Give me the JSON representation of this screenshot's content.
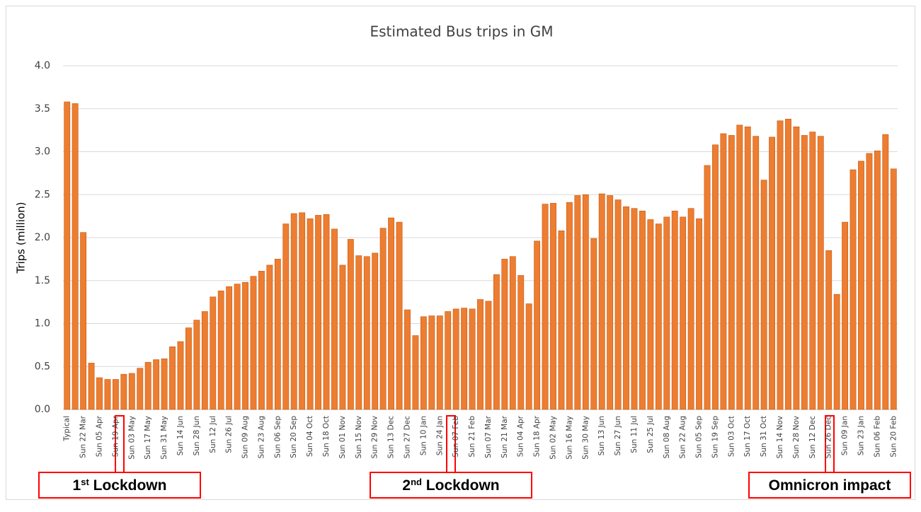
{
  "chart_data": {
    "type": "bar",
    "title": "Estimated Bus trips in GM",
    "y_label": "Trips (million)",
    "color": "#ed7d31",
    "categories": [
      "Typical",
      null,
      "Sun 22 Mar",
      null,
      "Sun 05 Apr",
      null,
      "Sun 19 Apr",
      null,
      "Sun 03 May",
      null,
      "Sun 17 May",
      null,
      "Sun 31 May",
      null,
      "Sun 14 Jun",
      null,
      "Sun 28 Jun",
      null,
      "Sun 12 Jul",
      null,
      "Sun 26 Jul",
      null,
      "Sun 09 Aug",
      null,
      "Sun 23 Aug",
      null,
      "Sun 06 Sep",
      null,
      "Sun 20 Sep",
      null,
      "Sun 04 Oct",
      null,
      "Sun 18 Oct",
      null,
      "Sun 01 Nov",
      null,
      "Sun 15 Nov",
      null,
      "Sun 29 Nov",
      null,
      "Sun 13 Dec",
      null,
      "Sun 27 Dec",
      null,
      "Sun 10 Jan",
      null,
      "Sun 24 Jan",
      null,
      "Sun 07 Feb",
      null,
      "Sun 21 Feb",
      null,
      "Sun 07 Mar",
      null,
      "Sun 21 Mar",
      null,
      "Sun 04 Apr",
      null,
      "Sun 18 Apr",
      null,
      "Sun 02 May",
      null,
      "Sun 16 May",
      null,
      "Sun 30 May",
      null,
      "Sun 13 Jun",
      null,
      "Sun 27 Jun",
      null,
      "Sun 11 Jul",
      null,
      "Sun 25 Jul",
      null,
      "Sun 08 Aug",
      null,
      "Sun 22 Aug",
      null,
      "Sun 05 Sep",
      null,
      "Sun 19 Sep",
      null,
      "Sun 03 Oct",
      null,
      "Sun 17 Oct",
      null,
      "Sun 31 Oct",
      null,
      "Sun 14 Nov",
      null,
      "Sun 28 Nov",
      null,
      "Sun 12 Dec",
      null,
      "Sun 26 Dec",
      null,
      "Sun 09 Jan",
      null,
      "Sun 23 Jan",
      null,
      "Sun 06 Feb",
      null,
      "Sun 20 Feb"
    ],
    "values": [
      3.58,
      3.56,
      2.06,
      0.54,
      0.37,
      0.35,
      0.35,
      0.41,
      0.42,
      0.48,
      0.55,
      0.58,
      0.59,
      0.73,
      0.79,
      0.95,
      1.04,
      1.14,
      1.31,
      1.38,
      1.43,
      1.46,
      1.48,
      1.55,
      1.61,
      1.68,
      1.75,
      2.16,
      2.28,
      2.29,
      2.22,
      2.26,
      2.27,
      2.1,
      1.68,
      1.98,
      1.79,
      1.78,
      1.82,
      2.11,
      2.23,
      2.18,
      1.16,
      0.86,
      1.08,
      1.09,
      1.09,
      1.14,
      1.17,
      1.18,
      1.17,
      1.28,
      1.26,
      1.57,
      1.75,
      1.78,
      1.56,
      1.23,
      1.96,
      2.39,
      2.4,
      2.08,
      2.41,
      2.49,
      2.5,
      1.99,
      2.51,
      2.49,
      2.44,
      2.36,
      2.34,
      2.31,
      2.21,
      2.16,
      2.24,
      2.31,
      2.24,
      2.34,
      2.22,
      2.84,
      3.08,
      3.21,
      3.19,
      3.31,
      3.29,
      3.18,
      2.67,
      3.17,
      3.36,
      3.38,
      3.29,
      3.19,
      3.23,
      3.18,
      1.85,
      1.34,
      2.18,
      2.79,
      2.89,
      2.98,
      3.01,
      3.2,
      2.8
    ],
    "ylim": [
      0,
      4
    ],
    "yticks": [
      {
        "value": 0,
        "label": "0.0"
      },
      {
        "value": 0.5,
        "label": "0.5"
      },
      {
        "value": 1,
        "label": "1.0"
      },
      {
        "value": 1.5,
        "label": "1.5"
      },
      {
        "value": 2,
        "label": "2.0"
      },
      {
        "value": 2.5,
        "label": "2.5"
      },
      {
        "value": 3,
        "label": "3.0"
      },
      {
        "value": 3.5,
        "label": "3.5"
      },
      {
        "value": 4,
        "label": "4.0"
      }
    ],
    "grid": true,
    "annotations": [
      {
        "parts": [
          "1",
          "st",
          " Lockdown"
        ]
      },
      {
        "parts": [
          "2",
          "nd",
          " Lockdown"
        ]
      },
      {
        "parts": [
          "Omnicron impact"
        ]
      }
    ]
  }
}
